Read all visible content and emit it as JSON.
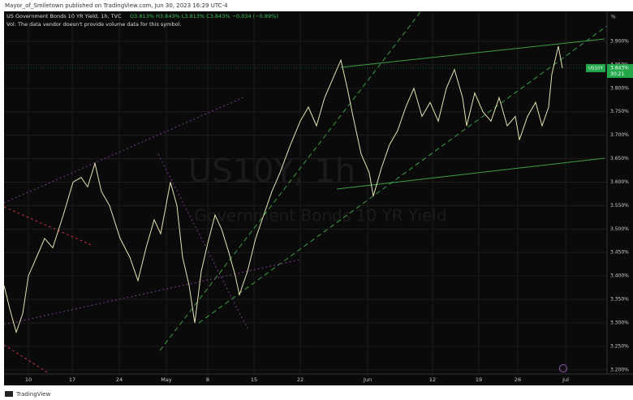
{
  "header": "Mayor_of_Smiletown published on TradingView.com, Jun 30, 2023 16:29 UTC-4",
  "footer": "TradingView",
  "chart_data": {
    "type": "line",
    "title": "US Government Bonds 10 YR Yield, 1h, TVC",
    "ohlc": "O3.813% H3.843% L3.813% C3.843% −0.034 (−0.89%)",
    "volume_note": "Vol: The data vendor doesn't provide volume data for this symbol.",
    "watermark_symbol": "US10Y, 1h",
    "watermark_name": "Government Bonds 10 YR Yield",
    "axis_unit": "%",
    "symbol_tag": "US10Y",
    "last_price_label": "3.843%",
    "countdown": "30:21",
    "last_price": 3.843,
    "color": "#e6e4b4",
    "price_tag_color": "#22a84a",
    "grid": true,
    "x": [
      0,
      7,
      15,
      23,
      30,
      40,
      50,
      60,
      73,
      85,
      95,
      103,
      112,
      120,
      130,
      143,
      155,
      165,
      175,
      185,
      193,
      205,
      213,
      220,
      228,
      235,
      243,
      251,
      260,
      268,
      277,
      285,
      290,
      300,
      310,
      320,
      330,
      340,
      353,
      365,
      375,
      385,
      395,
      405,
      415,
      423,
      430,
      440,
      450,
      455,
      465,
      475,
      485,
      495,
      505,
      515,
      525,
      535,
      545,
      555,
      565,
      570,
      580,
      590,
      600,
      610,
      620,
      630,
      635,
      645,
      655,
      663,
      671,
      675,
      683,
      688
    ],
    "values": [
      3.38,
      3.33,
      3.28,
      3.32,
      3.4,
      3.44,
      3.48,
      3.46,
      3.53,
      3.6,
      3.61,
      3.59,
      3.64,
      3.58,
      3.55,
      3.48,
      3.44,
      3.39,
      3.46,
      3.52,
      3.49,
      3.6,
      3.55,
      3.44,
      3.38,
      3.3,
      3.41,
      3.47,
      3.53,
      3.5,
      3.45,
      3.4,
      3.36,
      3.41,
      3.48,
      3.53,
      3.58,
      3.62,
      3.68,
      3.73,
      3.76,
      3.72,
      3.78,
      3.82,
      3.86,
      3.8,
      3.74,
      3.66,
      3.62,
      3.57,
      3.63,
      3.68,
      3.71,
      3.76,
      3.8,
      3.74,
      3.77,
      3.73,
      3.8,
      3.84,
      3.78,
      3.72,
      3.79,
      3.75,
      3.73,
      3.78,
      3.72,
      3.74,
      3.69,
      3.74,
      3.77,
      3.72,
      3.76,
      3.83,
      3.89,
      3.843
    ],
    "xlim": [
      0,
      743
    ],
    "xticks": [
      {
        "value": 30,
        "label": "10"
      },
      {
        "value": 84,
        "label": "17"
      },
      {
        "value": 142,
        "label": "24"
      },
      {
        "value": 200,
        "label": "May"
      },
      {
        "value": 251,
        "label": "8"
      },
      {
        "value": 308,
        "label": "15"
      },
      {
        "value": 365,
        "label": "22"
      },
      {
        "value": 448,
        "label": "Jun"
      },
      {
        "value": 528,
        "label": "12"
      },
      {
        "value": 585,
        "label": "19"
      },
      {
        "value": 633,
        "label": "26"
      },
      {
        "value": 692,
        "label": "Jul"
      }
    ],
    "ylim": [
      3.191,
      3.964
    ],
    "yticks": [
      {
        "value": 3.2,
        "label": "3.200%"
      },
      {
        "value": 3.25,
        "label": "3.250%"
      },
      {
        "value": 3.3,
        "label": "3.300%"
      },
      {
        "value": 3.35,
        "label": "3.350%"
      },
      {
        "value": 3.4,
        "label": "3.400%"
      },
      {
        "value": 3.45,
        "label": "3.450%"
      },
      {
        "value": 3.5,
        "label": "3.500%"
      },
      {
        "value": 3.55,
        "label": "3.550%"
      },
      {
        "value": 3.6,
        "label": "3.600%"
      },
      {
        "value": 3.65,
        "label": "3.650%"
      },
      {
        "value": 3.7,
        "label": "3.700%"
      },
      {
        "value": 3.75,
        "label": "3.750%"
      },
      {
        "value": 3.8,
        "label": "3.800%"
      },
      {
        "value": 3.85,
        "label": "3.850%"
      },
      {
        "value": 3.9,
        "label": "3.900%"
      }
    ]
  }
}
